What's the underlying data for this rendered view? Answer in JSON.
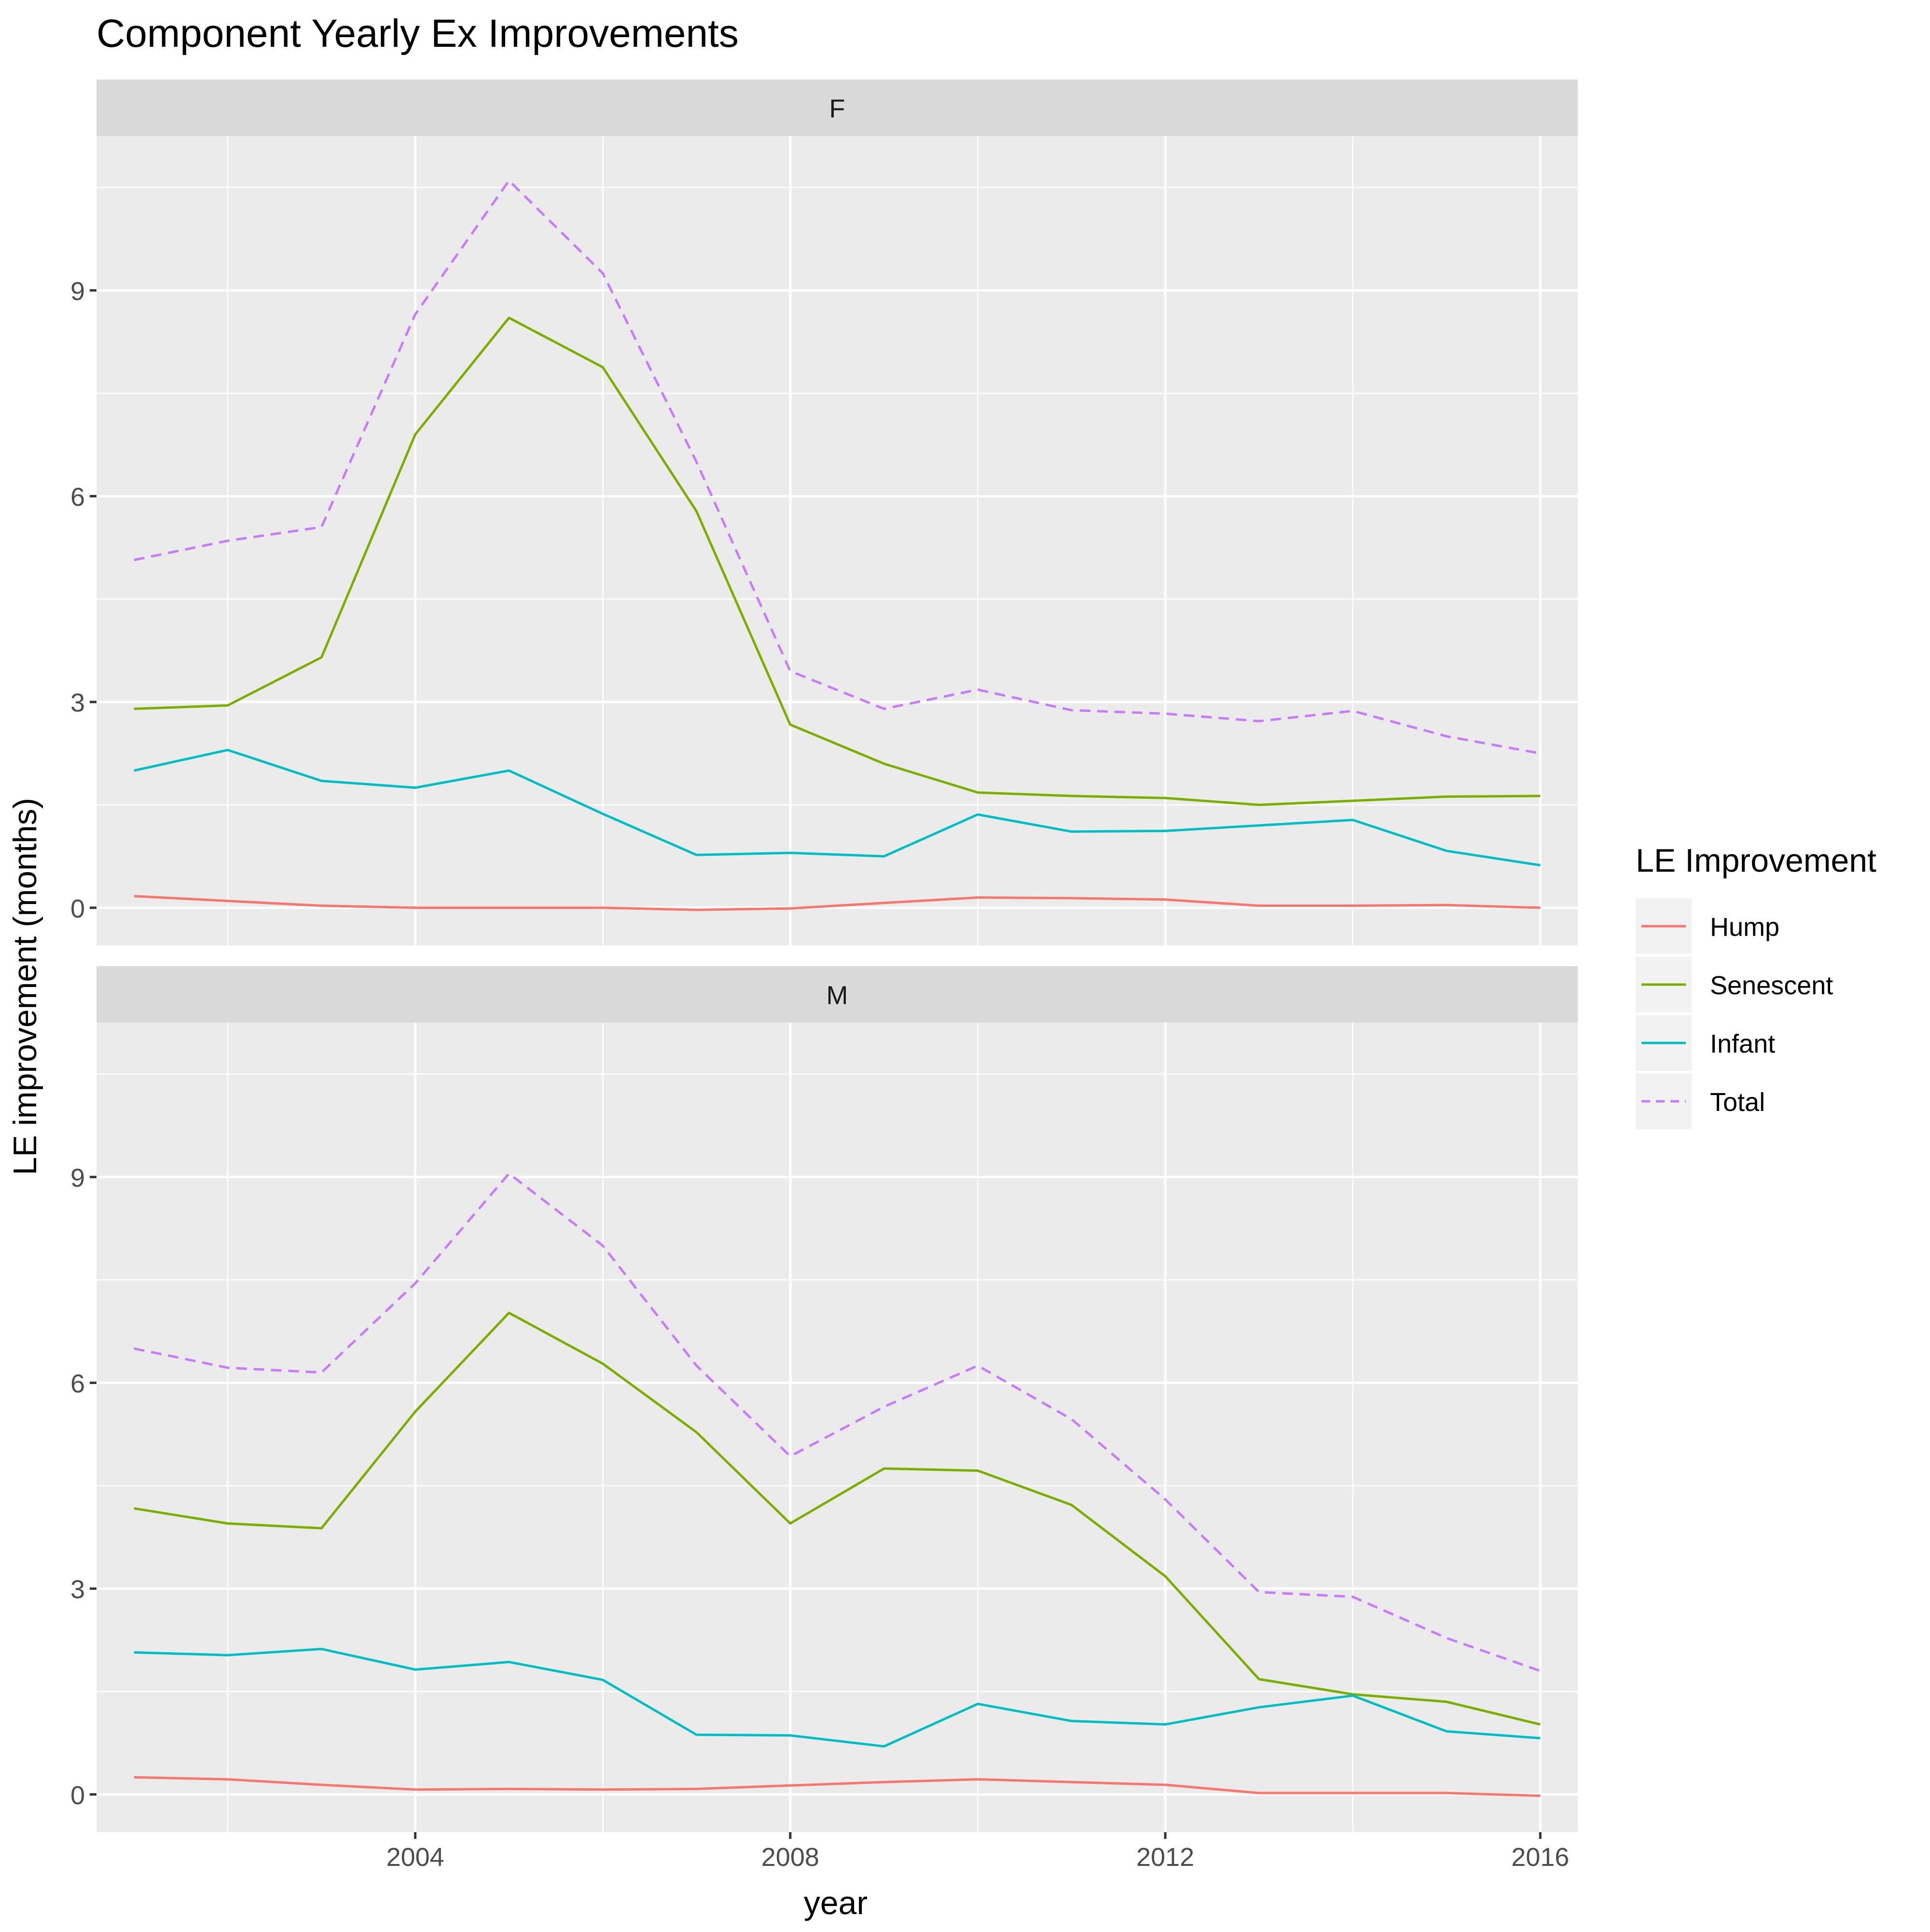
{
  "chart_data": {
    "type": "line",
    "title": "Component Yearly Ex Improvements",
    "xlabel": "year",
    "ylabel": "LE improvement (months)",
    "xlim": [
      2000.6,
      2016.4
    ],
    "ylim": [
      -0.55,
      11.25
    ],
    "x_ticks": [
      2004,
      2008,
      2012,
      2016
    ],
    "y_ticks": [
      0,
      3,
      6,
      9
    ],
    "grid": true,
    "legend": {
      "title": "LE Improvement",
      "position": "right",
      "entries": [
        {
          "name": "Hump",
          "color": "#F8766D",
          "dash": false
        },
        {
          "name": "Senescent",
          "color": "#7CAE00",
          "dash": false
        },
        {
          "name": "Infant",
          "color": "#00BFC4",
          "dash": false
        },
        {
          "name": "Total",
          "color": "#C77CFF",
          "dash": true
        }
      ]
    },
    "x": [
      2001,
      2002,
      2003,
      2004,
      2005,
      2006,
      2007,
      2008,
      2009,
      2010,
      2011,
      2012,
      2013,
      2014,
      2015,
      2016
    ],
    "panels": [
      {
        "label": "F",
        "series": [
          {
            "name": "Hump",
            "values": [
              0.17,
              0.1,
              0.03,
              0.0,
              0.0,
              0.0,
              -0.03,
              -0.01,
              0.07,
              0.15,
              0.14,
              0.12,
              0.03,
              0.03,
              0.04,
              0.0
            ]
          },
          {
            "name": "Senescent",
            "values": [
              2.9,
              2.95,
              3.65,
              6.9,
              8.6,
              7.88,
              5.78,
              2.67,
              2.1,
              1.68,
              1.63,
              1.6,
              1.5,
              1.56,
              1.62,
              1.63
            ]
          },
          {
            "name": "Infant",
            "values": [
              2.0,
              2.3,
              1.85,
              1.75,
              2.0,
              1.37,
              0.77,
              0.8,
              0.75,
              1.36,
              1.11,
              1.12,
              1.2,
              1.28,
              0.83,
              0.62
            ]
          },
          {
            "name": "Total",
            "values": [
              5.07,
              5.35,
              5.55,
              8.65,
              10.6,
              9.25,
              6.5,
              3.45,
              2.9,
              3.18,
              2.88,
              2.83,
              2.72,
              2.87,
              2.5,
              2.25
            ]
          }
        ]
      },
      {
        "label": "M",
        "series": [
          {
            "name": "Hump",
            "values": [
              0.25,
              0.22,
              0.14,
              0.07,
              0.08,
              0.07,
              0.08,
              0.13,
              0.18,
              0.22,
              0.18,
              0.14,
              0.02,
              0.02,
              0.02,
              -0.02
            ]
          },
          {
            "name": "Senescent",
            "values": [
              4.17,
              3.95,
              3.88,
              5.58,
              7.02,
              6.28,
              5.28,
              3.95,
              4.75,
              4.72,
              4.22,
              3.18,
              1.68,
              1.46,
              1.35,
              1.02
            ]
          },
          {
            "name": "Infant",
            "values": [
              2.07,
              2.03,
              2.12,
              1.82,
              1.93,
              1.67,
              0.87,
              0.86,
              0.7,
              1.32,
              1.07,
              1.02,
              1.27,
              1.44,
              0.92,
              0.82
            ]
          },
          {
            "name": "Total",
            "values": [
              6.5,
              6.22,
              6.15,
              7.45,
              9.05,
              8.0,
              6.25,
              4.93,
              5.65,
              6.25,
              5.47,
              4.3,
              2.95,
              2.88,
              2.28,
              1.8
            ]
          }
        ]
      }
    ]
  }
}
